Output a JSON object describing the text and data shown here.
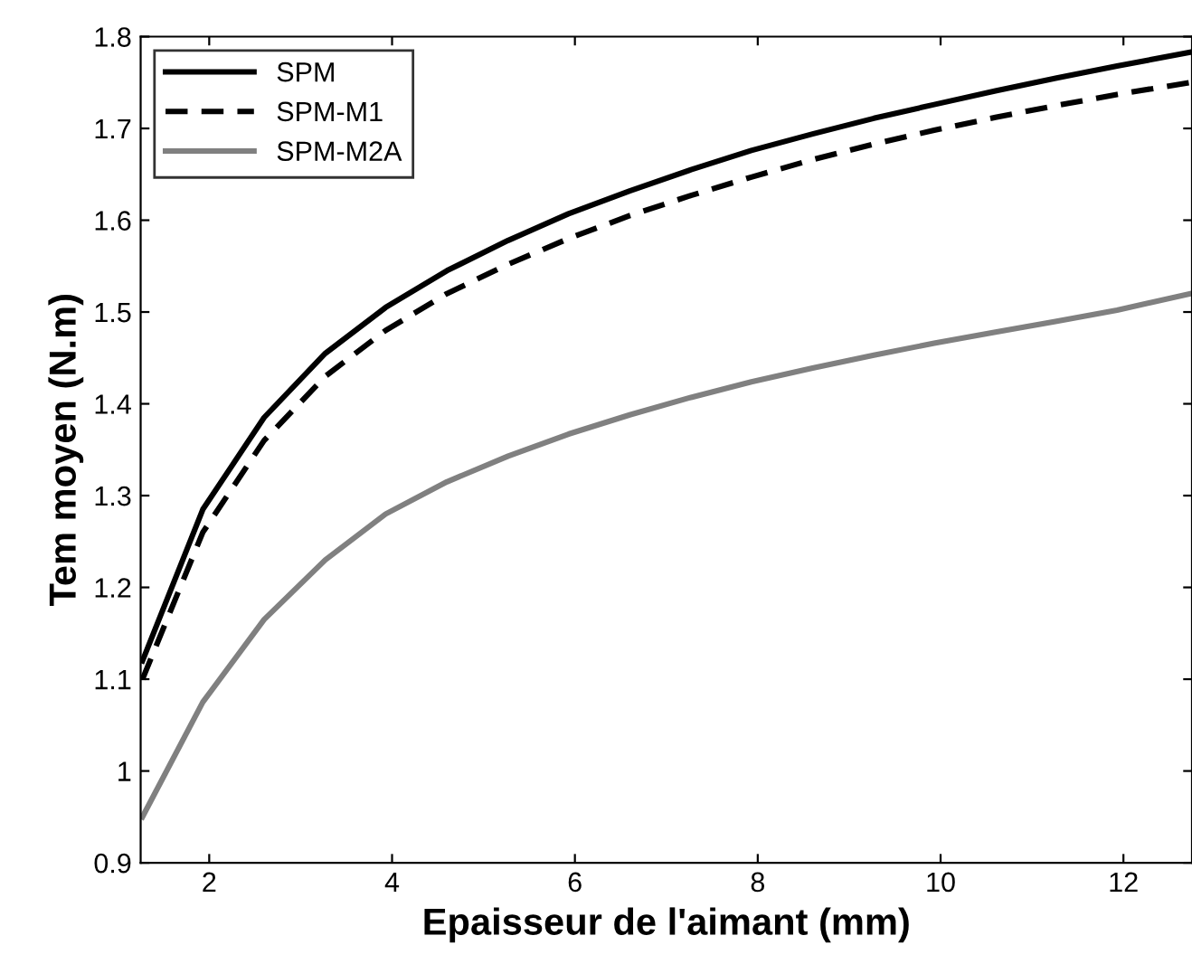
{
  "chart_data": {
    "type": "line",
    "xlabel": "Epaisseur de l'aimant (mm)",
    "ylabel": "Tem moyen (N.m)",
    "x": [
      1.27,
      1.93,
      2.6,
      3.27,
      3.93,
      4.6,
      5.27,
      5.93,
      6.6,
      7.27,
      7.93,
      8.6,
      9.27,
      9.93,
      10.6,
      11.27,
      11.93,
      12.73
    ],
    "series": [
      {
        "name": "SPM",
        "color": "#000000",
        "line_style": "solid",
        "values": [
          1.12,
          1.285,
          1.385,
          1.455,
          1.505,
          1.545,
          1.578,
          1.607,
          1.632,
          1.655,
          1.676,
          1.694,
          1.711,
          1.726,
          1.741,
          1.755,
          1.768,
          1.783
        ]
      },
      {
        "name": "SPM-M1",
        "color": "#000000",
        "line_style": "dashed",
        "values": [
          1.1,
          1.26,
          1.36,
          1.43,
          1.48,
          1.52,
          1.552,
          1.58,
          1.605,
          1.627,
          1.647,
          1.666,
          1.683,
          1.698,
          1.712,
          1.725,
          1.737,
          1.75
        ]
      },
      {
        "name": "SPM-M2A",
        "color": "#808080",
        "line_style": "solid",
        "values": [
          0.95,
          1.075,
          1.165,
          1.23,
          1.28,
          1.315,
          1.343,
          1.367,
          1.388,
          1.407,
          1.424,
          1.439,
          1.453,
          1.466,
          1.478,
          1.49,
          1.502,
          1.52
        ]
      }
    ],
    "xlim": [
      1.25,
      12.75
    ],
    "xticks": [
      2,
      4,
      6,
      8,
      10,
      12
    ],
    "ylim": [
      0.9,
      1.8
    ],
    "yticks": [
      0.9,
      1,
      1.1,
      1.2,
      1.3,
      1.4,
      1.5,
      1.6,
      1.7,
      1.8
    ],
    "grid": false,
    "legend": "top left",
    "marker": "none"
  }
}
